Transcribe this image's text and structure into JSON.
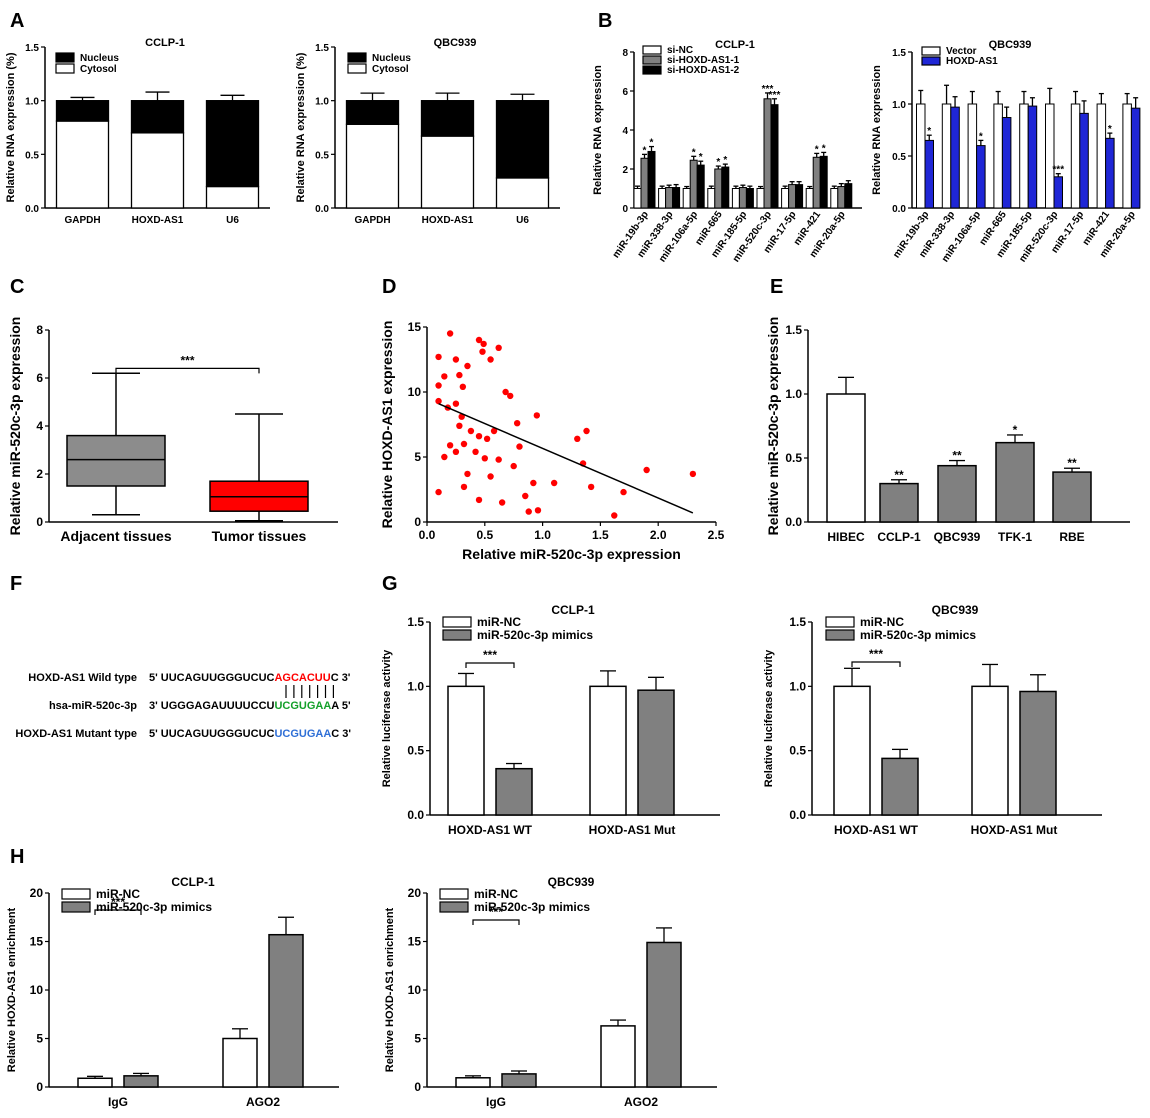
{
  "panel_labels": [
    "A",
    "B",
    "C",
    "D",
    "E",
    "F",
    "G",
    "H"
  ],
  "colors": {
    "black": "#000000",
    "white": "#ffffff",
    "gray": "#808080",
    "blue": "#1f26d6",
    "red": "#ff0000",
    "box_gray": "#8c8c8c",
    "seq_red": "#ff0000",
    "seq_green": "#14a02a",
    "seq_blue": "#2f6fd6"
  },
  "panel_F": {
    "rows": [
      {
        "label": "HOXD-AS1 Wild type",
        "prefix": "5' UUCAGUUGGGUCUC",
        "highlight": "AGCACUU",
        "suffix": "C 3'",
        "color": "#ff0000"
      },
      {
        "label": "hsa-miR-520c-3p",
        "prefix": "3' UGGGAGAUUUUCCU",
        "highlight": "UCGUGAA",
        "suffix": "A 5'",
        "color": "#14a02a"
      },
      {
        "label": "HOXD-AS1 Mutant type",
        "prefix": "5' UUCAGUUGGGUCUC",
        "highlight": "UCGUGAA",
        "suffix": "C 3'",
        "color": "#2f6fd6"
      }
    ]
  },
  "chart_data": [
    {
      "id": "A1",
      "type": "bar",
      "stacked": true,
      "title": "CCLP-1",
      "categories": [
        "GAPDH",
        "HOXD-AS1",
        "U6"
      ],
      "series": [
        {
          "name": "Nucleus",
          "values": [
            0.19,
            0.3,
            0.8
          ],
          "color": "#000000"
        },
        {
          "name": "Cytosol",
          "values": [
            0.81,
            0.7,
            0.2
          ],
          "color": "#ffffff"
        }
      ],
      "errors": [
        0.03,
        0.08,
        0.05
      ],
      "ylabel": "Relative RNA expression (%)",
      "ylim": [
        0,
        1.5
      ],
      "yticks": [
        0.0,
        0.5,
        1.0,
        1.5
      ]
    },
    {
      "id": "A2",
      "type": "bar",
      "stacked": true,
      "title": "QBC939",
      "categories": [
        "GAPDH",
        "HOXD-AS1",
        "U6"
      ],
      "series": [
        {
          "name": "Nucleus",
          "values": [
            0.22,
            0.33,
            0.72
          ],
          "color": "#000000"
        },
        {
          "name": "Cytosol",
          "values": [
            0.78,
            0.67,
            0.28
          ],
          "color": "#ffffff"
        }
      ],
      "errors": [
        0.07,
        0.07,
        0.06
      ],
      "ylabel": "Relative RNA expression (%)",
      "ylim": [
        0,
        1.5
      ],
      "yticks": [
        0.0,
        0.5,
        1.0,
        1.5
      ]
    },
    {
      "id": "B1",
      "type": "bar",
      "title": "CCLP-1",
      "categories": [
        "miR-19b-3p",
        "miR-338-3p",
        "miR-106a-5p",
        "miR-665",
        "miR-185-5p",
        "miR-520c-3p",
        "miR-17-5p",
        "miR-421",
        "miR-20a-5p"
      ],
      "series": [
        {
          "name": "si-NC",
          "values": [
            1.0,
            1.0,
            1.0,
            1.0,
            1.0,
            1.0,
            1.0,
            1.0,
            1.0
          ],
          "errors": [
            0.12,
            0.12,
            0.1,
            0.12,
            0.12,
            0.1,
            0.12,
            0.1,
            0.12
          ],
          "sig": [
            "",
            "",
            "",
            "",
            "",
            "",
            "",
            "",
            ""
          ],
          "color": "#ffffff"
        },
        {
          "name": "si-HOXD-AS1-1",
          "values": [
            2.55,
            1.05,
            2.45,
            2.0,
            1.05,
            5.6,
            1.2,
            2.6,
            1.1
          ],
          "errors": [
            0.2,
            0.12,
            0.2,
            0.15,
            0.12,
            0.3,
            0.15,
            0.2,
            0.15
          ],
          "sig": [
            "*",
            "",
            "*",
            "*",
            "",
            "***",
            "",
            "*",
            ""
          ],
          "color": "#808080"
        },
        {
          "name": "si-HOXD-AS1-2",
          "values": [
            2.9,
            1.05,
            2.2,
            2.1,
            1.0,
            5.3,
            1.2,
            2.65,
            1.25
          ],
          "errors": [
            0.25,
            0.15,
            0.2,
            0.15,
            0.12,
            0.3,
            0.15,
            0.2,
            0.15
          ],
          "sig": [
            "*",
            "",
            "*",
            "*",
            "",
            "***",
            "",
            "*",
            ""
          ],
          "color": "#000000"
        }
      ],
      "ylabel": "Relative RNA expression",
      "ylim": [
        0,
        8
      ],
      "yticks": [
        0,
        2,
        4,
        6,
        8
      ]
    },
    {
      "id": "B2",
      "type": "bar",
      "title": "QBC939",
      "categories": [
        "miR-19b-3p",
        "miR-338-3p",
        "miR-106a-5p",
        "miR-665",
        "miR-185-5p",
        "miR-520c-3p",
        "miR-17-5p",
        "miR-421",
        "miR-20a-5p"
      ],
      "series": [
        {
          "name": "Vector",
          "values": [
            1.0,
            1.0,
            1.0,
            1.0,
            1.0,
            1.0,
            1.0,
            1.0,
            1.0
          ],
          "errors": [
            0.13,
            0.18,
            0.12,
            0.12,
            0.12,
            0.15,
            0.12,
            0.1,
            0.1
          ],
          "sig": [
            "",
            "",
            "",
            "",
            "",
            "",
            "",
            "",
            ""
          ],
          "color": "#ffffff"
        },
        {
          "name": "HOXD-AS1",
          "values": [
            0.65,
            0.97,
            0.6,
            0.87,
            0.98,
            0.3,
            0.91,
            0.67,
            0.96
          ],
          "errors": [
            0.05,
            0.1,
            0.05,
            0.1,
            0.08,
            0.03,
            0.12,
            0.05,
            0.1
          ],
          "sig": [
            "*",
            "",
            "*",
            "",
            "",
            "***",
            "",
            "*",
            ""
          ],
          "color": "#1f26d6"
        }
      ],
      "ylabel": "Relative RNA expression",
      "ylim": [
        0,
        1.5
      ],
      "yticks": [
        0.0,
        0.5,
        1.0,
        1.5
      ]
    },
    {
      "id": "C",
      "type": "box",
      "categories": [
        "Adjacent tissues",
        "Tumor tissues"
      ],
      "boxes": [
        {
          "min": 0.3,
          "q1": 1.5,
          "median": 2.6,
          "q3": 3.6,
          "max": 6.2,
          "color": "#8c8c8c"
        },
        {
          "min": 0.05,
          "q1": 0.45,
          "median": 1.05,
          "q3": 1.7,
          "max": 4.5,
          "color": "#ff0000"
        }
      ],
      "sig": "***",
      "ylabel": "Relative miR-520c-3p expression",
      "ylim": [
        0,
        8
      ],
      "yticks": [
        0,
        2,
        4,
        6,
        8
      ]
    },
    {
      "id": "D",
      "type": "scatter",
      "points": [
        [
          0.2,
          14.5
        ],
        [
          0.1,
          12.7
        ],
        [
          0.1,
          10.5
        ],
        [
          0.15,
          11.2
        ],
        [
          0.25,
          12.5
        ],
        [
          0.28,
          11.3
        ],
        [
          0.31,
          10.4
        ],
        [
          0.35,
          12.0
        ],
        [
          0.45,
          14.0
        ],
        [
          0.49,
          13.7
        ],
        [
          0.48,
          13.1
        ],
        [
          0.55,
          12.5
        ],
        [
          0.62,
          13.4
        ],
        [
          0.68,
          10.0
        ],
        [
          0.72,
          9.7
        ],
        [
          0.1,
          9.3
        ],
        [
          0.18,
          8.8
        ],
        [
          0.25,
          9.1
        ],
        [
          0.3,
          8.1
        ],
        [
          0.28,
          7.4
        ],
        [
          0.38,
          7.0
        ],
        [
          0.45,
          6.6
        ],
        [
          0.52,
          6.4
        ],
        [
          0.58,
          7.0
        ],
        [
          0.78,
          7.6
        ],
        [
          0.95,
          8.2
        ],
        [
          0.2,
          5.9
        ],
        [
          0.15,
          5.0
        ],
        [
          0.25,
          5.4
        ],
        [
          0.32,
          6.0
        ],
        [
          0.42,
          5.4
        ],
        [
          0.5,
          4.9
        ],
        [
          0.62,
          4.8
        ],
        [
          0.75,
          4.3
        ],
        [
          0.8,
          5.8
        ],
        [
          0.35,
          3.7
        ],
        [
          0.55,
          3.5
        ],
        [
          0.1,
          2.3
        ],
        [
          0.32,
          2.7
        ],
        [
          0.45,
          1.7
        ],
        [
          0.65,
          1.5
        ],
        [
          0.85,
          2.0
        ],
        [
          0.92,
          3.0
        ],
        [
          0.88,
          0.8
        ],
        [
          0.96,
          0.9
        ],
        [
          1.1,
          3.0
        ],
        [
          1.3,
          6.4
        ],
        [
          1.38,
          7.0
        ],
        [
          1.35,
          4.5
        ],
        [
          1.42,
          2.7
        ],
        [
          1.62,
          0.5
        ],
        [
          1.7,
          2.3
        ],
        [
          1.9,
          4.0
        ],
        [
          2.3,
          3.7
        ]
      ],
      "trend": {
        "x0": 0.1,
        "y0": 9.1,
        "x1": 2.3,
        "y1": 0.7
      },
      "xlabel": "Relative miR-520c-3p expression",
      "ylabel": "Relative HOXD-AS1 expression",
      "xlim": [
        0,
        2.5
      ],
      "ylim": [
        0,
        15
      ],
      "xticks": [
        "0.0",
        "0.5",
        "1.0",
        "1.5",
        "2.0",
        "2.5"
      ],
      "yticks": [
        "0",
        "5",
        "10",
        "15"
      ]
    },
    {
      "id": "E",
      "type": "bar",
      "categories": [
        "HIBEC",
        "CCLP-1",
        "QBC939",
        "TFK-1",
        "RBE"
      ],
      "values": [
        1.0,
        0.3,
        0.44,
        0.62,
        0.39
      ],
      "errors": [
        0.13,
        0.03,
        0.04,
        0.06,
        0.03
      ],
      "sig": [
        "",
        "**",
        "**",
        "*",
        "**"
      ],
      "colors": [
        "#ffffff",
        "#808080",
        "#808080",
        "#808080",
        "#808080"
      ],
      "ylabel": "Relative miR-520c-3p expression",
      "ylim": [
        0,
        1.5
      ],
      "yticks": [
        "0.0",
        "0.5",
        "1.0",
        "1.5"
      ]
    },
    {
      "id": "G1",
      "type": "bar",
      "title": "CCLP-1",
      "categories": [
        "HOXD-AS1 WT",
        "HOXD-AS1 Mut"
      ],
      "series": [
        {
          "name": "miR-NC",
          "values": [
            1.0,
            1.0
          ],
          "errors": [
            0.1,
            0.12
          ],
          "color": "#ffffff"
        },
        {
          "name": "miR-520c-3p mimics",
          "values": [
            0.36,
            0.97
          ],
          "errors": [
            0.04,
            0.1
          ],
          "color": "#808080"
        }
      ],
      "sig": "***",
      "ylabel": "Relative luciferase activity",
      "ylim": [
        0,
        1.5
      ],
      "yticks": [
        "0.0",
        "0.5",
        "1.0",
        "1.5"
      ]
    },
    {
      "id": "G2",
      "type": "bar",
      "title": "QBC939",
      "categories": [
        "HOXD-AS1 WT",
        "HOXD-AS1 Mut"
      ],
      "series": [
        {
          "name": "miR-NC",
          "values": [
            1.0,
            1.0
          ],
          "errors": [
            0.14,
            0.17
          ],
          "color": "#ffffff"
        },
        {
          "name": "miR-520c-3p mimics",
          "values": [
            0.44,
            0.96
          ],
          "errors": [
            0.07,
            0.13
          ],
          "color": "#808080"
        }
      ],
      "sig": "***",
      "ylabel": "Relative luciferase activity",
      "ylim": [
        0,
        1.5
      ],
      "yticks": [
        "0.0",
        "0.5",
        "1.0",
        "1.5"
      ]
    },
    {
      "id": "H1",
      "type": "bar",
      "title": "CCLP-1",
      "categories": [
        "IgG",
        "AGO2"
      ],
      "series": [
        {
          "name": "miR-NC",
          "values": [
            0.9,
            5.0
          ],
          "errors": [
            0.2,
            1.0
          ],
          "color": "#ffffff"
        },
        {
          "name": "miR-520c-3p mimics",
          "values": [
            1.15,
            15.7
          ],
          "errors": [
            0.25,
            1.8
          ],
          "color": "#808080"
        }
      ],
      "sig": "***",
      "ylabel": "Relative HOXD-AS1 enrichment",
      "ylim": [
        0,
        20
      ],
      "yticks": [
        "0",
        "5",
        "10",
        "15",
        "20"
      ]
    },
    {
      "id": "H2",
      "type": "bar",
      "title": "QBC939",
      "categories": [
        "IgG",
        "AGO2"
      ],
      "series": [
        {
          "name": "miR-NC",
          "values": [
            0.95,
            6.3
          ],
          "errors": [
            0.2,
            0.6
          ],
          "color": "#ffffff"
        },
        {
          "name": "miR-520c-3p mimics",
          "values": [
            1.35,
            14.9
          ],
          "errors": [
            0.3,
            1.5
          ],
          "color": "#808080"
        }
      ],
      "sig": "***",
      "ylabel": "Relative HOXD-AS1 enrichment",
      "ylim": [
        0,
        20
      ],
      "yticks": [
        "0",
        "5",
        "10",
        "15",
        "20"
      ]
    }
  ]
}
